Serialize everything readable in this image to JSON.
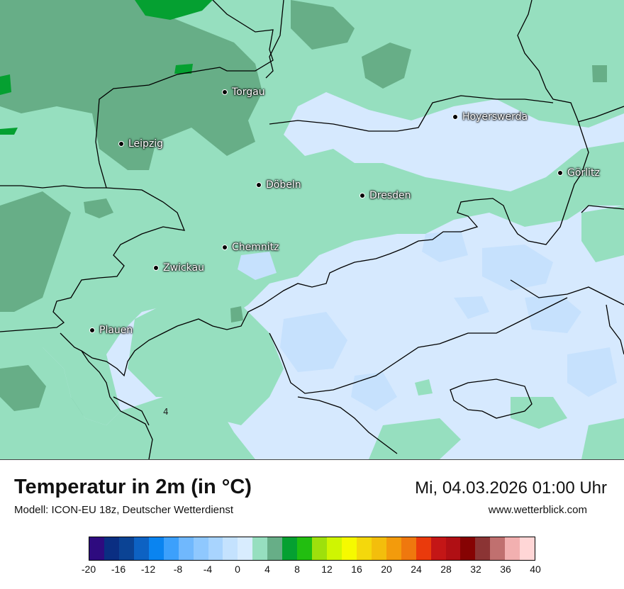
{
  "map": {
    "colors": {
      "background": "#d6e9fe",
      "band_2_4": "#96dfbf",
      "band_4_6": "#67ae87",
      "band_6_8": "#05a031",
      "band_0_2_light": "#c6e1fd",
      "border": "#000000"
    },
    "cities": [
      {
        "name": "Torgau"
      },
      {
        "name": "Hoyerswerda"
      },
      {
        "name": "Leipzig"
      },
      {
        "name": "Görlitz"
      },
      {
        "name": "Döbeln"
      },
      {
        "name": "Dresden"
      },
      {
        "name": "Chemnitz"
      },
      {
        "name": "Zwickau"
      },
      {
        "name": "Plauen"
      }
    ],
    "value_label": "4"
  },
  "header": {
    "title": "Temperatur in 2m (in °C)",
    "model": "Modell: ICON-EU 18z, Deutscher Wetterdienst",
    "datetime": "Mi, 04.03.2026 01:00 Uhr",
    "site": "www.wetterblick.com"
  },
  "legend": {
    "colors": [
      "#2e0b7f",
      "#0a2e82",
      "#0b4394",
      "#0d62c3",
      "#0a84f0",
      "#3ca0fc",
      "#70b8fd",
      "#8fc8fe",
      "#a8d4fe",
      "#c4e2fe",
      "#d8ecfe",
      "#96dfbf",
      "#67ae87",
      "#05a031",
      "#22be10",
      "#9ee00c",
      "#cff502",
      "#f6fa00",
      "#f4d80c",
      "#f3be0c",
      "#f39b0c",
      "#ef780e",
      "#ea3a0c",
      "#c41616",
      "#b00f14",
      "#860303",
      "#8b3434",
      "#c0706f",
      "#f2b0b0",
      "#ffd6d6"
    ],
    "ticks": [
      "-20",
      "-16",
      "-12",
      "-8",
      "-4",
      "0",
      "4",
      "8",
      "12",
      "16",
      "20",
      "24",
      "28",
      "32",
      "36",
      "40"
    ]
  }
}
